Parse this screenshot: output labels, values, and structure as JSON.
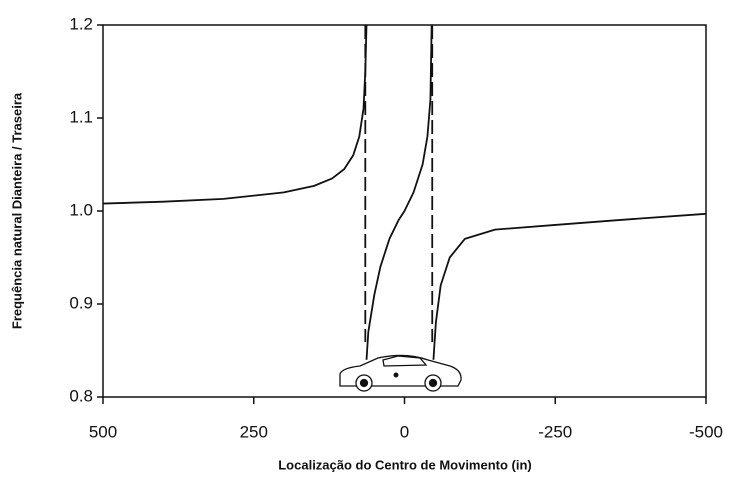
{
  "chart_data": {
    "type": "line",
    "x_label": "Localização do Centro de Movimento (in)",
    "y_label": "Frequência natural Dianteira / Traseira",
    "xlim": [
      500,
      -500
    ],
    "ylim": [
      0.8,
      1.2
    ],
    "xticks": [
      500,
      250,
      0,
      -250,
      -500
    ],
    "yticks": [
      0.8,
      0.9,
      {
        "value": 1,
        "label": "1.0"
      },
      1.1,
      1.2
    ],
    "color": "#111111",
    "series": [
      {
        "x": [
          500,
          400,
          300,
          200,
          150,
          120,
          100,
          85,
          75,
          68,
          65,
          63
        ],
        "values": [
          1.008,
          1.01,
          1.013,
          1.02,
          1.027,
          1.035,
          1.045,
          1.06,
          1.08,
          1.11,
          1.15,
          1.2
        ]
      },
      {
        "x": [
          63,
          60,
          50,
          40,
          25,
          10,
          0,
          -15,
          -30,
          -38,
          -43,
          -45
        ],
        "values": [
          0.84,
          0.87,
          0.91,
          0.94,
          0.97,
          0.99,
          1.0,
          1.02,
          1.05,
          1.08,
          1.12,
          1.2
        ]
      },
      {
        "x": [
          -48,
          -52,
          -60,
          -75,
          -100,
          -150,
          -250,
          -350,
          -500
        ],
        "values": [
          0.84,
          0.88,
          0.92,
          0.95,
          0.97,
          0.98,
          0.985,
          0.99,
          0.997
        ]
      }
    ],
    "vlines": [
      65,
      -46
    ]
  }
}
